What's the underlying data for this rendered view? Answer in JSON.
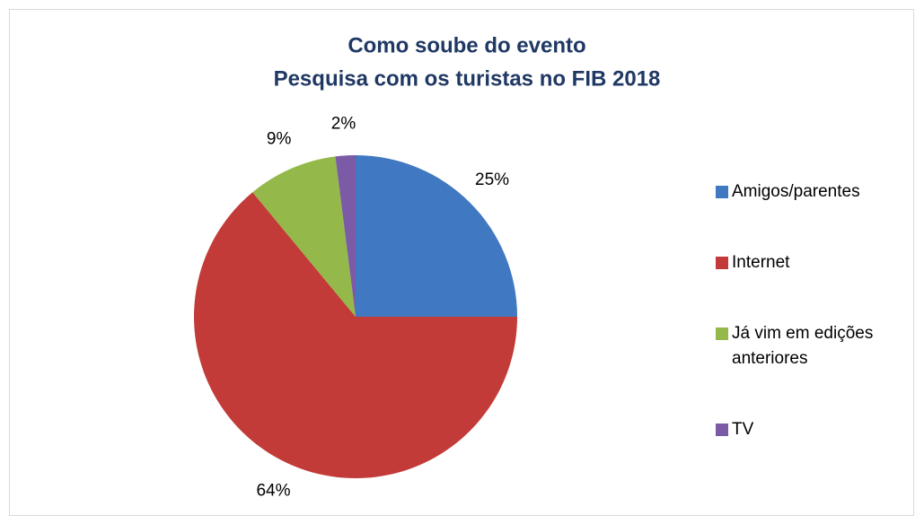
{
  "chart_data": {
    "type": "pie",
    "title": "Como soube do evento",
    "subtitle": "Pesquisa com os turistas no FIB 2018",
    "categories": [
      "Amigos/parentes",
      "Internet",
      "Já vim em edições anteriores",
      "TV"
    ],
    "values": [
      25,
      64,
      9,
      2
    ],
    "value_labels": [
      "25%",
      "64%",
      "9%",
      "2%"
    ],
    "colors": [
      "#4178c2",
      "#c23b38",
      "#94b94a",
      "#7c5ba6"
    ],
    "legend": "right"
  }
}
